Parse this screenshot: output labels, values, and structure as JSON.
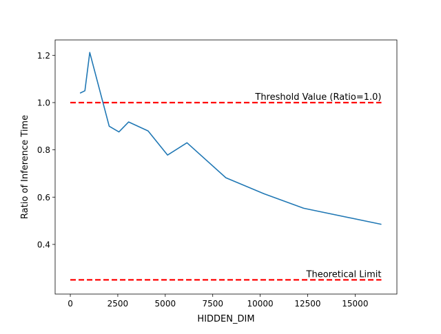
{
  "chart_data": {
    "type": "line",
    "title": "",
    "xlabel": "HIDDEN_DIM",
    "ylabel": "Ratio of Inference Time",
    "xlim": [
      -800,
      17200
    ],
    "ylim": [
      0.19,
      1.265
    ],
    "xticks": [
      0,
      2500,
      5000,
      7500,
      10000,
      12500,
      15000
    ],
    "xtick_labels": [
      "0",
      "2500",
      "5000",
      "7500",
      "10000",
      "12500",
      "15000"
    ],
    "yticks": [
      0.4,
      0.6,
      0.8,
      1.0,
      1.2
    ],
    "ytick_labels": [
      "0.4",
      "0.6",
      "0.8",
      "1.0",
      "1.2"
    ],
    "grid": false,
    "series": [
      {
        "color": "#1f77b4",
        "x": [
          512,
          768,
          1024,
          2048,
          2560,
          3072,
          4096,
          5120,
          6144,
          8192,
          10240,
          12288,
          16384
        ],
        "y": [
          1.04,
          1.05,
          1.212,
          0.9,
          0.876,
          0.918,
          0.88,
          0.778,
          0.83,
          0.682,
          0.613,
          0.553,
          0.485
        ]
      }
    ],
    "reference_lines": [
      {
        "y": 1.0,
        "x_range": [
          0,
          16384
        ],
        "color": "#ff0000",
        "style": "dashed",
        "label": "Threshold Value (Ratio=1.0)"
      },
      {
        "y": 0.25,
        "x_range": [
          0,
          16384
        ],
        "color": "#ff0000",
        "style": "dashed",
        "label": "Theoretical Limit"
      }
    ]
  }
}
